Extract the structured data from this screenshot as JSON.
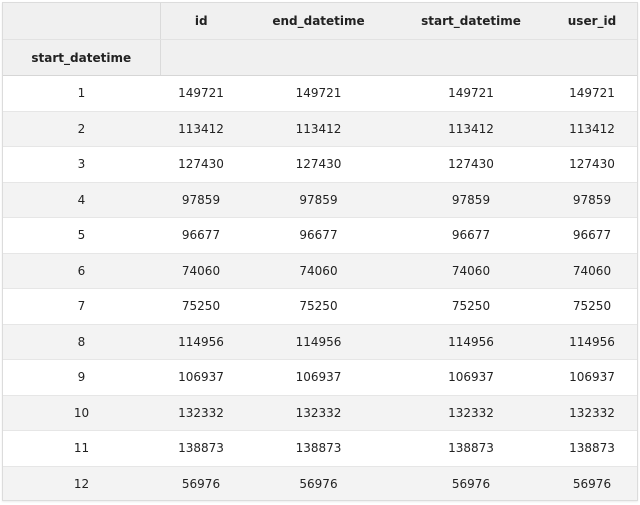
{
  "table": {
    "columns": [
      "id",
      "end_datetime",
      "start_datetime",
      "user_id"
    ],
    "index_name": "start_datetime",
    "rows": [
      {
        "index": "1",
        "values": [
          "149721",
          "149721",
          "149721",
          "149721"
        ]
      },
      {
        "index": "2",
        "values": [
          "113412",
          "113412",
          "113412",
          "113412"
        ]
      },
      {
        "index": "3",
        "values": [
          "127430",
          "127430",
          "127430",
          "127430"
        ]
      },
      {
        "index": "4",
        "values": [
          "97859",
          "97859",
          "97859",
          "97859"
        ]
      },
      {
        "index": "5",
        "values": [
          "96677",
          "96677",
          "96677",
          "96677"
        ]
      },
      {
        "index": "6",
        "values": [
          "74060",
          "74060",
          "74060",
          "74060"
        ]
      },
      {
        "index": "7",
        "values": [
          "75250",
          "75250",
          "75250",
          "75250"
        ]
      },
      {
        "index": "8",
        "values": [
          "114956",
          "114956",
          "114956",
          "114956"
        ]
      },
      {
        "index": "9",
        "values": [
          "106937",
          "106937",
          "106937",
          "106937"
        ]
      },
      {
        "index": "10",
        "values": [
          "132332",
          "132332",
          "132332",
          "132332"
        ]
      },
      {
        "index": "11",
        "values": [
          "138873",
          "138873",
          "138873",
          "138873"
        ]
      },
      {
        "index": "12",
        "values": [
          "56976",
          "56976",
          "56976",
          "56976"
        ]
      }
    ]
  }
}
